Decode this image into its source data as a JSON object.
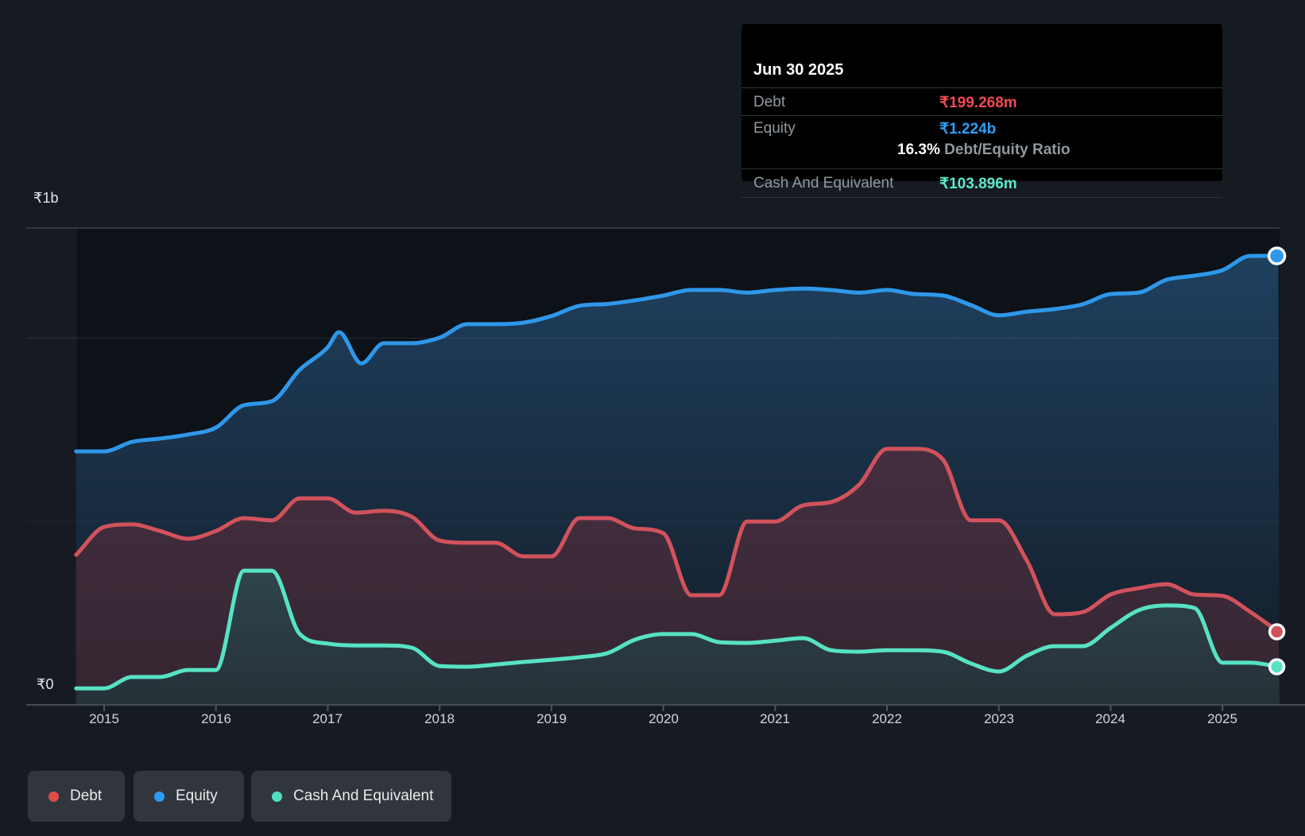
{
  "tooltip": {
    "date": "Jun 30 2025",
    "rows": [
      {
        "label": "Debt",
        "value": "₹199.268m",
        "color": "#ef4b53"
      },
      {
        "label": "Equity",
        "value": "₹1.224b",
        "color": "#2f9ef5"
      },
      {
        "label": "Cash And Equivalent",
        "value": "₹103.896m",
        "color": "#5ce8c8"
      }
    ],
    "ratio_value": "16.3%",
    "ratio_label": "Debt/Equity Ratio"
  },
  "y_axis": {
    "top": "₹1b",
    "bottom": "₹0"
  },
  "x_axis": {
    "years": [
      "2015",
      "2016",
      "2017",
      "2018",
      "2019",
      "2020",
      "2021",
      "2022",
      "2023",
      "2024",
      "2025"
    ]
  },
  "legend": {
    "items": [
      {
        "label": "Debt",
        "color": "#df4d4b"
      },
      {
        "label": "Equity",
        "color": "#2d9cf4"
      },
      {
        "label": "Cash And Equivalent",
        "color": "#52dfc0"
      }
    ]
  },
  "chart_data": {
    "type": "area",
    "title": "Debt to Equity History",
    "x_unit": "year (quarterly points)",
    "y_unit": "INR millions",
    "x_range": [
      2014.75,
      2025.5
    ],
    "y_gridlines_m": [
      0,
      500,
      1000
    ],
    "y_axis_labels": {
      "1000m": "₹1b",
      "0m": "₹0"
    },
    "legend_position": "bottom-left",
    "series": [
      {
        "name": "Equity",
        "color": "#2f97e9",
        "fill_top": "#1f4262",
        "fill_bottom": "#131c26",
        "points": [
          [
            2014.75,
            691
          ],
          [
            2015,
            691
          ],
          [
            2015.25,
            717
          ],
          [
            2015.5,
            726
          ],
          [
            2015.75,
            737
          ],
          [
            2016,
            756
          ],
          [
            2016.25,
            817
          ],
          [
            2016.5,
            828
          ],
          [
            2016.75,
            914
          ],
          [
            2017,
            975
          ],
          [
            2017.1,
            1016
          ],
          [
            2017.3,
            931
          ],
          [
            2017.5,
            986
          ],
          [
            2017.75,
            986
          ],
          [
            2018,
            1001
          ],
          [
            2018.25,
            1038
          ],
          [
            2018.5,
            1038
          ],
          [
            2018.75,
            1042
          ],
          [
            2019,
            1060
          ],
          [
            2019.25,
            1088
          ],
          [
            2019.5,
            1093
          ],
          [
            2019.75,
            1103
          ],
          [
            2020,
            1116
          ],
          [
            2020.25,
            1131
          ],
          [
            2020.5,
            1131
          ],
          [
            2020.75,
            1124
          ],
          [
            2021,
            1131
          ],
          [
            2021.25,
            1135
          ],
          [
            2021.5,
            1131
          ],
          [
            2021.75,
            1124
          ],
          [
            2022,
            1131
          ],
          [
            2022.25,
            1120
          ],
          [
            2022.5,
            1116
          ],
          [
            2022.75,
            1090
          ],
          [
            2023,
            1062
          ],
          [
            2023.25,
            1072
          ],
          [
            2023.5,
            1079
          ],
          [
            2023.75,
            1092
          ],
          [
            2024,
            1120
          ],
          [
            2024.25,
            1124
          ],
          [
            2024.5,
            1159
          ],
          [
            2024.75,
            1170
          ],
          [
            2025,
            1185
          ],
          [
            2025.25,
            1224
          ],
          [
            2025.5,
            1224
          ]
        ]
      },
      {
        "name": "Debt",
        "color": "#d2525c",
        "fill_top": "#452e3f",
        "fill_bottom": "#342631",
        "points": [
          [
            2014.75,
            409
          ],
          [
            2015,
            485
          ],
          [
            2015.25,
            492
          ],
          [
            2015.5,
            474
          ],
          [
            2015.75,
            453
          ],
          [
            2016,
            474
          ],
          [
            2016.25,
            509
          ],
          [
            2016.5,
            503
          ],
          [
            2016.75,
            563
          ],
          [
            2017,
            563
          ],
          [
            2017.25,
            524
          ],
          [
            2017.5,
            529
          ],
          [
            2017.75,
            513
          ],
          [
            2018,
            448
          ],
          [
            2018.25,
            442
          ],
          [
            2018.5,
            442
          ],
          [
            2018.75,
            405
          ],
          [
            2019,
            405
          ],
          [
            2019.25,
            509
          ],
          [
            2019.5,
            509
          ],
          [
            2019.75,
            481
          ],
          [
            2020,
            468
          ],
          [
            2020.25,
            299
          ],
          [
            2020.5,
            299
          ],
          [
            2020.75,
            500
          ],
          [
            2021,
            500
          ],
          [
            2021.25,
            544
          ],
          [
            2021.5,
            553
          ],
          [
            2021.75,
            600
          ],
          [
            2022,
            698
          ],
          [
            2022.25,
            698
          ],
          [
            2022.5,
            669
          ],
          [
            2022.75,
            503
          ],
          [
            2023,
            503
          ],
          [
            2023.25,
            394
          ],
          [
            2023.5,
            247
          ],
          [
            2023.75,
            253
          ],
          [
            2024,
            301
          ],
          [
            2024.25,
            318
          ],
          [
            2024.5,
            329
          ],
          [
            2024.75,
            301
          ],
          [
            2025,
            297
          ],
          [
            2025.25,
            253
          ],
          [
            2025.5,
            199.268
          ]
        ]
      },
      {
        "name": "Cash And Equivalent",
        "color": "#57e3c3",
        "fill_top": "#30474e",
        "fill_bottom": "#263037",
        "points": [
          [
            2014.75,
            45
          ],
          [
            2015,
            45
          ],
          [
            2015.25,
            76
          ],
          [
            2015.5,
            76
          ],
          [
            2015.75,
            95
          ],
          [
            2016,
            95
          ],
          [
            2016.25,
            366
          ],
          [
            2016.5,
            366
          ],
          [
            2016.75,
            193
          ],
          [
            2017,
            167
          ],
          [
            2017.25,
            162
          ],
          [
            2017.5,
            162
          ],
          [
            2017.75,
            156
          ],
          [
            2018,
            106
          ],
          [
            2018.25,
            104
          ],
          [
            2018.5,
            110
          ],
          [
            2018.75,
            117
          ],
          [
            2019,
            123
          ],
          [
            2019.25,
            130
          ],
          [
            2019.5,
            141
          ],
          [
            2019.75,
            178
          ],
          [
            2020,
            193
          ],
          [
            2020.25,
            193
          ],
          [
            2020.5,
            171
          ],
          [
            2020.75,
            169
          ],
          [
            2021,
            175
          ],
          [
            2021.25,
            182
          ],
          [
            2021.5,
            149
          ],
          [
            2021.75,
            145
          ],
          [
            2022,
            149
          ],
          [
            2022.25,
            149
          ],
          [
            2022.5,
            145
          ],
          [
            2022.75,
            113
          ],
          [
            2023,
            91
          ],
          [
            2023.25,
            134
          ],
          [
            2023.5,
            160
          ],
          [
            2023.75,
            160
          ],
          [
            2024,
            210
          ],
          [
            2024.25,
            258
          ],
          [
            2024.5,
            271
          ],
          [
            2024.75,
            264
          ],
          [
            2025,
            115
          ],
          [
            2025.25,
            115
          ],
          [
            2025.5,
            103.896
          ]
        ]
      }
    ],
    "end_markers": [
      {
        "series": "Equity",
        "x": 2025.5,
        "value_m": 1224
      },
      {
        "series": "Debt",
        "x": 2025.5,
        "value_m": 199.268
      },
      {
        "series": "Cash And Equivalent",
        "x": 2025.5,
        "value_m": 103.896
      }
    ]
  }
}
